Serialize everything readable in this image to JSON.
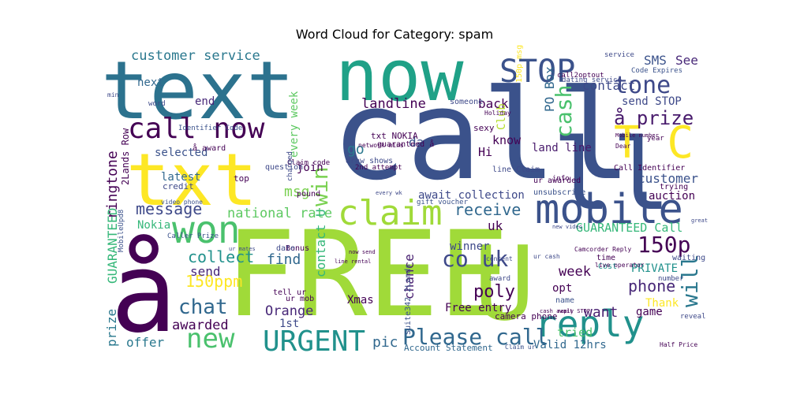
{
  "chart_data": {
    "type": "wordcloud",
    "title": "Word Cloud for Category: spam",
    "words": [
      {
        "text": "call",
        "color": "#3b528b"
      },
      {
        "text": "FREE",
        "color": "#a0da39"
      },
      {
        "text": "now",
        "color": "#1fa187"
      },
      {
        "text": "text",
        "color": "#2c728e"
      },
      {
        "text": "txt",
        "color": "#fde725"
      },
      {
        "text": "å",
        "color": "#440154"
      },
      {
        "text": "U",
        "color": "#a0da39"
      },
      {
        "text": "ll",
        "color": "#3b528b"
      },
      {
        "text": "mobile",
        "color": "#3b528b"
      },
      {
        "text": "reply",
        "color": "#21918c"
      },
      {
        "text": "claim",
        "color": "#a0da39"
      },
      {
        "text": "won",
        "color": "#4ac16d"
      },
      {
        "text": "STOP",
        "color": "#3b528b"
      },
      {
        "text": "URGENT",
        "color": "#21918c"
      },
      {
        "text": "T C",
        "color": "#fde725"
      },
      {
        "text": "call now",
        "color": "#440154"
      },
      {
        "text": "tone",
        "color": "#3e4989"
      },
      {
        "text": "Please call",
        "color": "#31688e"
      },
      {
        "text": "new",
        "color": "#4ac16d"
      },
      {
        "text": "150p",
        "color": "#440154"
      },
      {
        "text": "co uk",
        "color": "#3e4989"
      },
      {
        "text": "å prize",
        "color": "#481a6c"
      },
      {
        "text": "cash",
        "color": "#4ac16d"
      },
      {
        "text": "win",
        "color": "#7ad151"
      },
      {
        "text": "will",
        "color": "#2a788e"
      },
      {
        "text": "customer service",
        "color": "#2a788e"
      },
      {
        "text": "ringtone",
        "color": "#440154"
      },
      {
        "text": "GUARANTEED",
        "color": "#35b779"
      },
      {
        "text": "message",
        "color": "#3e4989"
      },
      {
        "text": "chat",
        "color": "#31688e"
      },
      {
        "text": "collect",
        "color": "#21918c"
      },
      {
        "text": "150ppm",
        "color": "#fde725"
      },
      {
        "text": "send STOP",
        "color": "#3e4989"
      },
      {
        "text": "contact",
        "color": "#3e4989"
      },
      {
        "text": "SMS",
        "color": "#3b528b"
      },
      {
        "text": "See",
        "color": "#482878"
      },
      {
        "text": "landline",
        "color": "#440154"
      },
      {
        "text": "PO Box",
        "color": "#31688e"
      },
      {
        "text": "receive",
        "color": "#31688e"
      },
      {
        "text": "awarded",
        "color": "#440154"
      },
      {
        "text": "national rate",
        "color": "#5ec962"
      },
      {
        "text": "want",
        "color": "#481f70"
      },
      {
        "text": "poly",
        "color": "#440154"
      },
      {
        "text": "phone",
        "color": "#482878"
      },
      {
        "text": "GUARANTEED Call",
        "color": "#35b779"
      },
      {
        "text": "customer",
        "color": "#3b528b"
      },
      {
        "text": "await collection",
        "color": "#3e4989"
      },
      {
        "text": "land line",
        "color": "#481a6c"
      },
      {
        "text": "Orange",
        "color": "#482878"
      },
      {
        "text": "go",
        "color": "#2a788e"
      },
      {
        "text": "send",
        "color": "#482878"
      },
      {
        "text": "prize",
        "color": "#2a788e"
      },
      {
        "text": "offer",
        "color": "#2a788e"
      },
      {
        "text": "pic",
        "color": "#31688e"
      },
      {
        "text": "Xmas",
        "color": "#440154"
      },
      {
        "text": "week",
        "color": "#440154"
      },
      {
        "text": "msg",
        "color": "#7ad151"
      },
      {
        "text": "find",
        "color": "#31688e"
      },
      {
        "text": "uk",
        "color": "#440154"
      },
      {
        "text": "Free entry",
        "color": "#440154"
      },
      {
        "text": "Valid 12hrs",
        "color": "#31688e"
      },
      {
        "text": "contact U",
        "color": "#35b779"
      },
      {
        "text": "every week",
        "color": "#5ec962"
      },
      {
        "text": "join",
        "color": "#440154"
      },
      {
        "text": "latest",
        "color": "#31688e"
      },
      {
        "text": "next",
        "color": "#31688e"
      },
      {
        "text": "end",
        "color": "#482878"
      },
      {
        "text": "back",
        "color": "#440154"
      },
      {
        "text": "day",
        "color": "#3b528b"
      },
      {
        "text": "Hi",
        "color": "#440154"
      },
      {
        "text": "know",
        "color": "#440154"
      },
      {
        "text": "Club",
        "color": "#b5de2b"
      },
      {
        "text": "selected",
        "color": "#3b528b"
      },
      {
        "text": "auction",
        "color": "#440154"
      },
      {
        "text": "winner",
        "color": "#3e4989"
      },
      {
        "text": "tried",
        "color": "#4ac16d"
      },
      {
        "text": "chance",
        "color": "#481f70"
      },
      {
        "text": "PRIVATE",
        "color": "#21918c"
      },
      {
        "text": "opt",
        "color": "#440154"
      },
      {
        "text": "Thank",
        "color": "#fde725"
      },
      {
        "text": "game",
        "color": "#440154"
      },
      {
        "text": "Nokia",
        "color": "#35b779"
      },
      {
        "text": "1st",
        "color": "#3e4989"
      },
      {
        "text": "2Lands Row",
        "color": "#440154"
      },
      {
        "text": "Suite342 2Lands",
        "color": "#3b528b"
      },
      {
        "text": "txt NOKIA",
        "color": "#440154"
      },
      {
        "text": "Call Identifier",
        "color": "#440154"
      },
      {
        "text": "unsubscribe",
        "color": "#3b528b"
      },
      {
        "text": "trying",
        "color": "#440154"
      },
      {
        "text": "waiting",
        "color": "#3e4989"
      },
      {
        "text": "call2optout",
        "color": "#440154"
      },
      {
        "text": "150p msg",
        "color": "#fde725"
      },
      {
        "text": "dating service",
        "color": "#3e4989"
      },
      {
        "text": "Account Statement",
        "color": "#31688e"
      },
      {
        "text": "Claim ur",
        "color": "#3b528b"
      },
      {
        "text": "Half Price",
        "color": "#440154"
      },
      {
        "text": "camera phone",
        "color": "#440154"
      },
      {
        "text": "credit",
        "color": "#3e4989"
      },
      {
        "text": "top",
        "color": "#440154"
      },
      {
        "text": "question",
        "color": "#3e4989"
      },
      {
        "text": "draw shows",
        "color": "#3e4989"
      },
      {
        "text": "2nd attempt",
        "color": "#440154"
      },
      {
        "text": "line Claim",
        "color": "#3e4989"
      },
      {
        "text": "ur awarded",
        "color": "#440154"
      },
      {
        "text": "gift voucher",
        "color": "#3b528b"
      },
      {
        "text": "Caller Prize",
        "color": "#3b528b"
      },
      {
        "text": "Bonus",
        "color": "#440154"
      },
      {
        "text": "service",
        "color": "#3e4989"
      },
      {
        "text": "Code Expires",
        "color": "#3b528b"
      },
      {
        "text": "Cost",
        "color": "#21918c"
      },
      {
        "text": "time",
        "color": "#440154"
      },
      {
        "text": "reveal",
        "color": "#3e4989"
      },
      {
        "text": "name",
        "color": "#3b528b"
      },
      {
        "text": "number",
        "color": "#3e4989"
      },
      {
        "text": "year",
        "color": "#440154"
      },
      {
        "text": "info",
        "color": "#440154"
      },
      {
        "text": "Dear",
        "color": "#440154"
      },
      {
        "text": "award",
        "color": "#3e4989"
      },
      {
        "text": "date",
        "color": "#3e4989"
      },
      {
        "text": "pound",
        "color": "#440154"
      },
      {
        "text": "tell ur",
        "color": "#440154"
      },
      {
        "text": "ur mob",
        "color": "#440154"
      },
      {
        "text": "someone",
        "color": "#3e4989"
      },
      {
        "text": "sexy",
        "color": "#440154"
      },
      {
        "text": "Holiday",
        "color": "#440154"
      },
      {
        "text": "word",
        "color": "#3e4989"
      },
      {
        "text": "min",
        "color": "#3e4989"
      },
      {
        "text": "video phone",
        "color": "#3b528b"
      },
      {
        "text": "Identifier Code",
        "color": "#3b528b"
      },
      {
        "text": "Claim code",
        "color": "#440154"
      },
      {
        "text": "charged",
        "color": "#3e4989"
      },
      {
        "text": "guaranteed å",
        "color": "#440154"
      },
      {
        "text": "å award",
        "color": "#440154"
      },
      {
        "text": "ur cash",
        "color": "#3e4989"
      },
      {
        "text": "content",
        "color": "#3e4989"
      },
      {
        "text": "Camcorder Reply",
        "color": "#440154"
      },
      {
        "text": "live operator",
        "color": "#440154"
      },
      {
        "text": "cash await",
        "color": "#440154"
      },
      {
        "text": "MobileUpd8",
        "color": "#3b528b"
      },
      {
        "text": "new video",
        "color": "#3e4989"
      },
      {
        "text": "network mins",
        "color": "#440154"
      },
      {
        "text": "ur mates",
        "color": "#3e4989"
      },
      {
        "text": "now send",
        "color": "#440154"
      },
      {
        "text": "line rental",
        "color": "#440154"
      },
      {
        "text": "Mobile number",
        "color": "#440154"
      },
      {
        "text": "reply STOP",
        "color": "#440154"
      },
      {
        "text": "every wk",
        "color": "#3e4989"
      },
      {
        "text": "great",
        "color": "#3e4989"
      }
    ]
  }
}
